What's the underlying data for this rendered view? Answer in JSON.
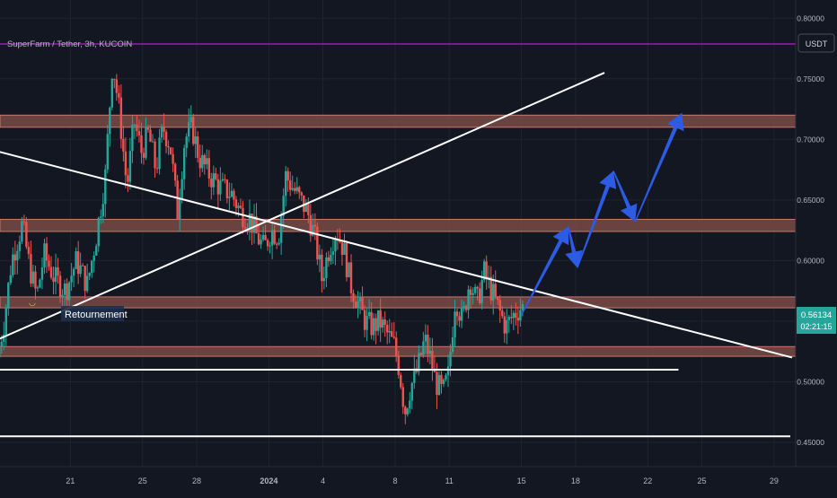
{
  "header": {
    "symbol_title": "SuperFarm / Tether, 3h, KUCOIN",
    "currency_badge": "USDT"
  },
  "price_scale": {
    "current_price": "0.56134",
    "countdown": "02:21:15"
  },
  "annotation": {
    "label": "Retournement"
  },
  "colors": {
    "background": "#131722",
    "grid": "#1f2430",
    "bull": "#26a69a",
    "bear": "#ef5350",
    "zone_fill": "#7a4a45",
    "zone_border": "#c9786c",
    "trendline": "#ffffff",
    "arrow": "#2d5be3",
    "top_line": "#b020c8",
    "price_tag": "#26a69a"
  },
  "chart_data": {
    "type": "candlestick",
    "title": "SuperFarm / Tether, 3h, KUCOIN",
    "xlabel": "",
    "ylabel": "",
    "ylim": [
      0.43,
      0.815
    ],
    "y_ticks": [
      "0.80000",
      "0.75000",
      "0.70000",
      "0.65000",
      "0.60000",
      "0.55000",
      "0.50000",
      "0.45000"
    ],
    "y_tick_values": [
      0.8,
      0.75,
      0.7,
      0.65,
      0.6,
      0.55,
      0.5,
      0.45
    ],
    "x_ticks": [
      "21",
      "25",
      "28",
      "2024",
      "4",
      "8",
      "11",
      "15",
      "18",
      "22",
      "25",
      "29"
    ],
    "x_tick_days": [
      -11,
      -7,
      -4,
      0,
      3,
      7,
      10,
      14,
      17,
      21,
      24,
      28
    ],
    "x_range_days": [
      -14.9,
      29.2
    ],
    "price_path": [
      [
        -15.0,
        0.52
      ],
      [
        -14.6,
        0.55
      ],
      [
        -14.2,
        0.6
      ],
      [
        -13.6,
        0.63
      ],
      [
        -13.2,
        0.595
      ],
      [
        -12.8,
        0.57
      ],
      [
        -12.4,
        0.605
      ],
      [
        -11.8,
        0.585
      ],
      [
        -11.2,
        0.575
      ],
      [
        -10.6,
        0.6
      ],
      [
        -10.0,
        0.58
      ],
      [
        -9.5,
        0.62
      ],
      [
        -9.0,
        0.67
      ],
      [
        -8.6,
        0.765
      ],
      [
        -8.2,
        0.72
      ],
      [
        -7.8,
        0.66
      ],
      [
        -7.4,
        0.715
      ],
      [
        -7.0,
        0.69
      ],
      [
        -6.6,
        0.705
      ],
      [
        -6.2,
        0.675
      ],
      [
        -5.8,
        0.71
      ],
      [
        -5.4,
        0.695
      ],
      [
        -5.0,
        0.64
      ],
      [
        -4.6,
        0.7
      ],
      [
        -4.2,
        0.71
      ],
      [
        -3.8,
        0.685
      ],
      [
        -3.2,
        0.67
      ],
      [
        -2.6,
        0.66
      ],
      [
        -2.0,
        0.655
      ],
      [
        -1.5,
        0.64
      ],
      [
        -1.0,
        0.635
      ],
      [
        -0.6,
        0.62
      ],
      [
        -0.2,
        0.61
      ],
      [
        0.2,
        0.625
      ],
      [
        0.6,
        0.62
      ],
      [
        1.0,
        0.67
      ],
      [
        1.4,
        0.66
      ],
      [
        1.8,
        0.65
      ],
      [
        2.2,
        0.64
      ],
      [
        2.6,
        0.62
      ],
      [
        3.0,
        0.585
      ],
      [
        3.4,
        0.61
      ],
      [
        3.8,
        0.625
      ],
      [
        4.2,
        0.61
      ],
      [
        4.6,
        0.58
      ],
      [
        5.0,
        0.565
      ],
      [
        5.4,
        0.55
      ],
      [
        5.8,
        0.545
      ],
      [
        6.2,
        0.55
      ],
      [
        6.6,
        0.54
      ],
      [
        7.0,
        0.53
      ],
      [
        7.3,
        0.51
      ],
      [
        7.6,
        0.475
      ],
      [
        7.9,
        0.495
      ],
      [
        8.3,
        0.51
      ],
      [
        8.7,
        0.535
      ],
      [
        9.0,
        0.52
      ],
      [
        9.3,
        0.5
      ],
      [
        9.7,
        0.49
      ],
      [
        10.0,
        0.505
      ],
      [
        10.4,
        0.57
      ],
      [
        10.8,
        0.55
      ],
      [
        11.2,
        0.585
      ],
      [
        11.6,
        0.565
      ],
      [
        12.0,
        0.59
      ],
      [
        12.4,
        0.575
      ],
      [
        12.8,
        0.56
      ],
      [
        13.2,
        0.545
      ],
      [
        13.6,
        0.555
      ],
      [
        14.0,
        0.56134
      ]
    ],
    "zones": [
      {
        "low": 0.71,
        "high": 0.72
      },
      {
        "low": 0.624,
        "high": 0.634
      },
      {
        "low": 0.561,
        "high": 0.57
      },
      {
        "low": 0.521,
        "high": 0.529
      }
    ],
    "trendlines": [
      {
        "from": [
          -15.0,
          0.69
        ],
        "to": [
          29.0,
          0.52
        ]
      },
      {
        "from": [
          -15.0,
          0.535
        ],
        "to": [
          18.6,
          0.755
        ]
      },
      {
        "from": [
          -15.0,
          0.51
        ],
        "to": [
          22.7,
          0.51
        ]
      },
      {
        "from": [
          -15.0,
          0.455
        ],
        "to": [
          28.9,
          0.455
        ]
      }
    ],
    "projection_path": [
      [
        14.0,
        0.555
      ],
      [
        16.6,
        0.628
      ],
      [
        17.1,
        0.594
      ],
      [
        19.1,
        0.674
      ],
      [
        20.3,
        0.632
      ],
      [
        22.9,
        0.722
      ]
    ]
  }
}
